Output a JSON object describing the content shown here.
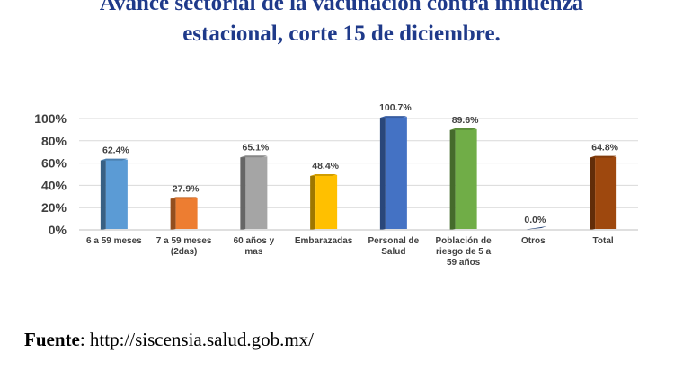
{
  "title": {
    "line1": "Avance sectorial de la vacunación contra influenza",
    "line2": "estacional, corte 15 de diciembre."
  },
  "source": {
    "label": "Fuente",
    "url": "http://siscensia.salud.gob.mx/"
  },
  "chart_data": {
    "type": "bar",
    "title": "",
    "xlabel": "",
    "ylabel": "",
    "ylim": [
      0,
      100
    ],
    "yticks": [
      "0%",
      "20%",
      "40%",
      "60%",
      "80%",
      "100%"
    ],
    "grid": true,
    "categories": [
      [
        "6 a 59 meses"
      ],
      [
        "7 a 59 meses",
        "(2das)"
      ],
      [
        "60 años y",
        "mas"
      ],
      [
        "Embarazadas"
      ],
      [
        "Personal de",
        "Salud"
      ],
      [
        "Población de",
        "riesgo de 5 a",
        "59 años"
      ],
      [
        "Otros"
      ],
      [
        "Total"
      ]
    ],
    "values": [
      62.4,
      27.9,
      65.1,
      48.4,
      100.7,
      89.6,
      0.0,
      64.8
    ],
    "value_labels": [
      "62.4%",
      "27.9%",
      "65.1%",
      "48.4%",
      "100.7%",
      "89.6%",
      "0.0%",
      "64.8%"
    ],
    "colors": [
      "#5b9bd5",
      "#ed7d31",
      "#a5a5a5",
      "#ffc000",
      "#4472c4",
      "#70ad47",
      "#264478",
      "#9e480e"
    ]
  }
}
